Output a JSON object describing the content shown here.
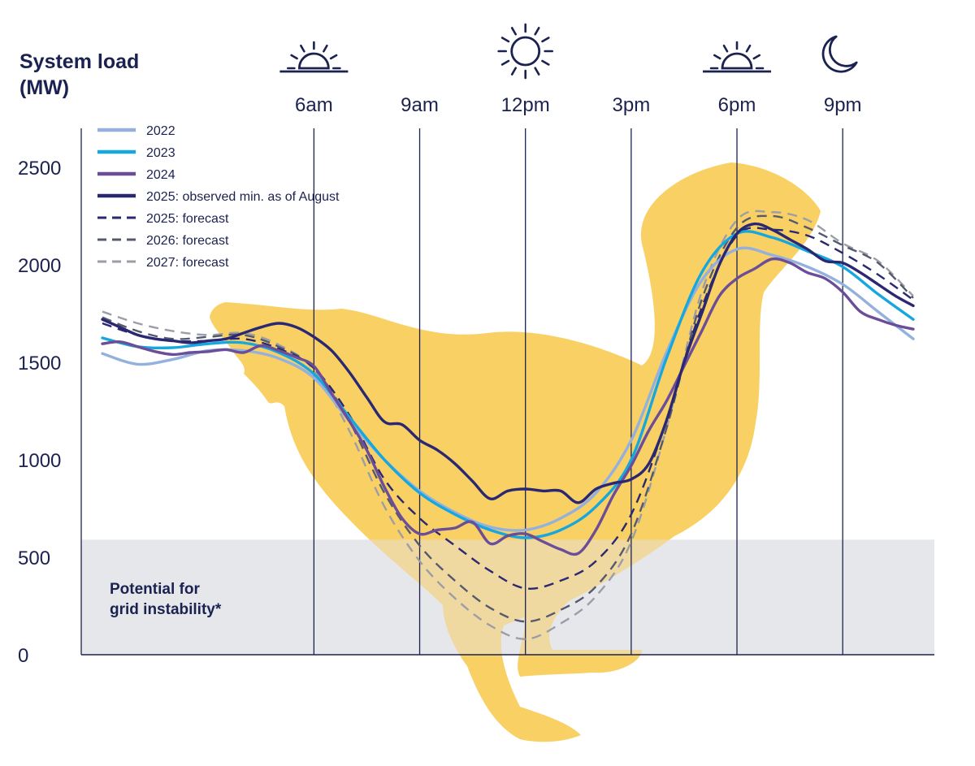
{
  "chart_data": {
    "type": "line",
    "ylabel": "System load\n(MW)",
    "ylim": [
      0,
      2700
    ],
    "yticks": [
      0,
      500,
      1000,
      1500,
      2000,
      2500
    ],
    "time_marks": [
      {
        "label": "6am",
        "hour": 6,
        "icon": "sunrise-icon"
      },
      {
        "label": "9am",
        "hour": 9,
        "icon": ""
      },
      {
        "label": "12pm",
        "hour": 12,
        "icon": "sun-icon"
      },
      {
        "label": "3pm",
        "hour": 15,
        "icon": ""
      },
      {
        "label": "6pm",
        "hour": 18,
        "icon": "sunset-icon"
      },
      {
        "label": "9pm",
        "hour": 21,
        "icon": "moon-icon"
      }
    ],
    "xlim": [
      -0.6,
      23.6
    ],
    "zone": {
      "label": "Potential for\ngrid instability*",
      "y_from": 0,
      "y_to": 590,
      "color": "#e6e7ec"
    },
    "duck": {
      "icon": "duck-silhouette-icon",
      "color": "#f9cc57"
    },
    "grid": false,
    "legend": "top-left",
    "series": [
      {
        "name": "2022",
        "color": "#93b1dc",
        "dash": "solid",
        "x": [
          0,
          1,
          2,
          3,
          4,
          5,
          6,
          7,
          8,
          9,
          10,
          11,
          12,
          13,
          14,
          15,
          16,
          17,
          18,
          19,
          20,
          21,
          22,
          23
        ],
        "y": [
          1545,
          1490,
          1515,
          1560,
          1560,
          1520,
          1420,
          1200,
          1000,
          840,
          730,
          655,
          640,
          700,
          830,
          1100,
          1550,
          1920,
          2080,
          2050,
          1990,
          1900,
          1760,
          1620
        ]
      },
      {
        "name": "2023",
        "color": "#17a7df",
        "dash": "solid",
        "x": [
          0,
          1,
          2,
          3,
          4,
          5,
          6,
          7,
          8,
          9,
          10,
          11,
          12,
          13,
          14,
          15,
          16,
          17,
          18,
          19,
          20,
          21,
          22,
          23
        ],
        "y": [
          1625,
          1580,
          1575,
          1595,
          1600,
          1550,
          1440,
          1220,
          1000,
          830,
          720,
          640,
          600,
          640,
          760,
          1000,
          1520,
          1960,
          2160,
          2140,
          2070,
          1990,
          1850,
          1720
        ]
      },
      {
        "name": "2024",
        "color": "#6b4d98",
        "dash": "solid",
        "x": [
          0,
          0.5,
          1,
          1.5,
          2,
          2.5,
          3,
          3.5,
          4,
          4.5,
          5,
          5.5,
          6,
          6.5,
          7,
          7.5,
          8,
          8.5,
          9,
          9.5,
          10,
          10.5,
          11,
          11.5,
          12,
          12.5,
          13,
          13.5,
          14,
          14.5,
          15,
          15.5,
          16,
          16.5,
          17,
          17.5,
          18,
          18.5,
          19,
          19.5,
          20,
          20.5,
          21,
          21.5,
          22,
          22.5,
          23
        ],
        "y": [
          1595,
          1605,
          1580,
          1555,
          1540,
          1550,
          1555,
          1565,
          1550,
          1585,
          1560,
          1525,
          1480,
          1340,
          1200,
          1050,
          860,
          700,
          620,
          640,
          650,
          680,
          570,
          610,
          620,
          580,
          540,
          520,
          640,
          820,
          970,
          1150,
          1300,
          1480,
          1660,
          1840,
          1930,
          1980,
          2030,
          2010,
          1960,
          1930,
          1860,
          1760,
          1720,
          1690,
          1670
        ]
      },
      {
        "name": "2025: observed min. as of August",
        "color": "#2a2872",
        "dash": "solid",
        "x": [
          0,
          0.5,
          1,
          1.5,
          2,
          2.5,
          3,
          3.5,
          4,
          4.5,
          5,
          5.5,
          6,
          6.5,
          7,
          7.5,
          8,
          8.5,
          9,
          9.5,
          10,
          10.5,
          11,
          11.5,
          12,
          12.5,
          13,
          13.5,
          14,
          14.5,
          15,
          15.5,
          16,
          16.5,
          17,
          17.5,
          18,
          18.5,
          19,
          19.5,
          20,
          20.5,
          21,
          21.5,
          22,
          22.5,
          23
        ],
        "y": [
          1720,
          1680,
          1640,
          1620,
          1610,
          1600,
          1610,
          1620,
          1650,
          1680,
          1700,
          1680,
          1630,
          1560,
          1450,
          1320,
          1195,
          1180,
          1100,
          1050,
          980,
          890,
          800,
          840,
          850,
          840,
          840,
          780,
          850,
          880,
          900,
          980,
          1200,
          1500,
          1750,
          2000,
          2160,
          2210,
          2180,
          2130,
          2080,
          2020,
          2010,
          1960,
          1900,
          1840,
          1790
        ]
      },
      {
        "name": "2025: forecast",
        "color": "#2a2872",
        "dash": "dashed",
        "x": [
          0,
          1,
          2,
          3,
          4,
          5,
          6,
          7,
          8,
          9,
          10,
          11,
          12,
          13,
          14,
          15,
          16,
          17,
          18,
          19,
          20,
          21,
          22,
          23
        ],
        "y": [
          1700,
          1640,
          1610,
          1610,
          1620,
          1570,
          1470,
          1230,
          900,
          700,
          560,
          430,
          340,
          380,
          480,
          720,
          1200,
          1780,
          2150,
          2180,
          2150,
          2060,
          1950,
          1820
        ]
      },
      {
        "name": "2026: forecast",
        "color": "#545a6e",
        "dash": "dashed",
        "x": [
          0,
          1,
          2,
          3,
          4,
          5,
          6,
          7,
          8,
          9,
          10,
          11,
          12,
          13,
          14,
          15,
          16,
          17,
          18,
          19,
          20,
          21,
          22,
          23
        ],
        "y": [
          1730,
          1660,
          1620,
          1630,
          1640,
          1580,
          1470,
          1200,
          830,
          560,
          380,
          240,
          170,
          230,
          350,
          620,
          1160,
          1820,
          2190,
          2250,
          2190,
          2100,
          2010,
          1830
        ]
      },
      {
        "name": "2027: forecast",
        "color": "#9b9ea6",
        "dash": "dashed",
        "x": [
          0,
          1,
          2,
          3,
          4,
          5,
          6,
          7,
          8,
          9,
          10,
          11,
          12,
          13,
          14,
          15,
          16,
          17,
          18,
          19,
          20,
          21,
          22,
          23
        ],
        "y": [
          1760,
          1700,
          1660,
          1640,
          1650,
          1590,
          1460,
          1150,
          760,
          480,
          290,
          150,
          80,
          160,
          300,
          580,
          1160,
          1860,
          2230,
          2270,
          2230,
          2110,
          2020,
          1840
        ]
      }
    ]
  }
}
